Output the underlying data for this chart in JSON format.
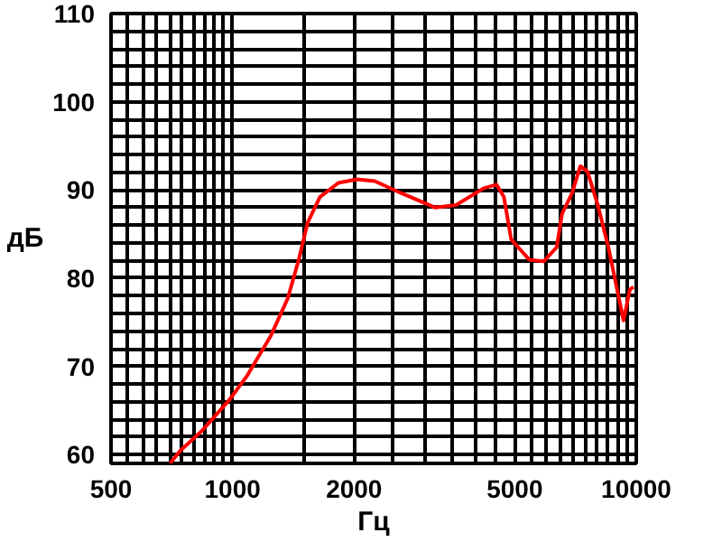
{
  "chart_data": {
    "type": "line",
    "xlabel": "Гц",
    "ylabel": "дБ",
    "log": "x",
    "grid": true,
    "x": [
      700,
      741,
      840,
      982,
      1089,
      1245,
      1370,
      1457,
      1535,
      1646,
      1828,
      2030,
      2250,
      2630,
      3180,
      3580,
      4190,
      4510,
      4700,
      4900,
      5430,
      5900,
      6350,
      6550,
      6930,
      7270,
      7570,
      8030,
      8530,
      9300,
      9640,
      9840
    ],
    "series": [
      {
        "color": "#ff0000",
        "values": [
          59,
          60.4,
          62.7,
          66.2,
          69,
          73.5,
          77.7,
          82,
          86.3,
          89.2,
          90.8,
          91.2,
          91,
          89.6,
          88,
          88.3,
          90.2,
          90.6,
          89.2,
          84.4,
          82.1,
          81.9,
          83.5,
          87.3,
          89.6,
          92.7,
          92.1,
          88.3,
          83.5,
          75.2,
          78.7,
          79
        ]
      }
    ],
    "xlim": [
      500,
      10000
    ],
    "ylim": [
      59,
      110
    ],
    "xticks": [
      500,
      {
        "value": 550,
        "label": null
      },
      {
        "value": 600,
        "label": null
      },
      {
        "value": 650,
        "label": null
      },
      {
        "value": 700,
        "label": null
      },
      {
        "value": 750,
        "label": null
      },
      {
        "value": 800,
        "label": null
      },
      {
        "value": 850,
        "label": null
      },
      {
        "value": 900,
        "label": null
      },
      {
        "value": 950,
        "label": null
      },
      1000,
      {
        "value": 1500,
        "label": null
      },
      2000,
      {
        "value": 2500,
        "label": null
      },
      {
        "value": 3000,
        "label": null
      },
      {
        "value": 3500,
        "label": null
      },
      {
        "value": 4000,
        "label": null
      },
      {
        "value": 4500,
        "label": null
      },
      5000,
      {
        "value": 5500,
        "label": null
      },
      {
        "value": 6000,
        "label": null
      },
      {
        "value": 6500,
        "label": null
      },
      {
        "value": 7000,
        "label": null
      },
      {
        "value": 7500,
        "label": null
      },
      {
        "value": 8000,
        "label": null
      },
      {
        "value": 8500,
        "label": null
      },
      {
        "value": 9000,
        "label": null
      },
      {
        "value": 9500,
        "label": null
      },
      10000
    ],
    "yticks": [
      60,
      {
        "value": 62,
        "label": null
      },
      {
        "value": 64,
        "label": null
      },
      {
        "value": 66,
        "label": null
      },
      {
        "value": 68,
        "label": null
      },
      70,
      {
        "value": 72,
        "label": null
      },
      {
        "value": 74,
        "label": null
      },
      {
        "value": 76,
        "label": null
      },
      {
        "value": 78,
        "label": null
      },
      80,
      {
        "value": 82,
        "label": null
      },
      {
        "value": 84,
        "label": null
      },
      {
        "value": 86,
        "label": null
      },
      {
        "value": 88,
        "label": null
      },
      90,
      {
        "value": 92,
        "label": null
      },
      {
        "value": 94,
        "label": null
      },
      {
        "value": 96,
        "label": null
      },
      {
        "value": 98,
        "label": null
      },
      100,
      {
        "value": 102,
        "label": null
      },
      {
        "value": 104,
        "label": null
      },
      {
        "value": 106,
        "label": null
      },
      {
        "value": 108,
        "label": null
      },
      110
    ]
  }
}
